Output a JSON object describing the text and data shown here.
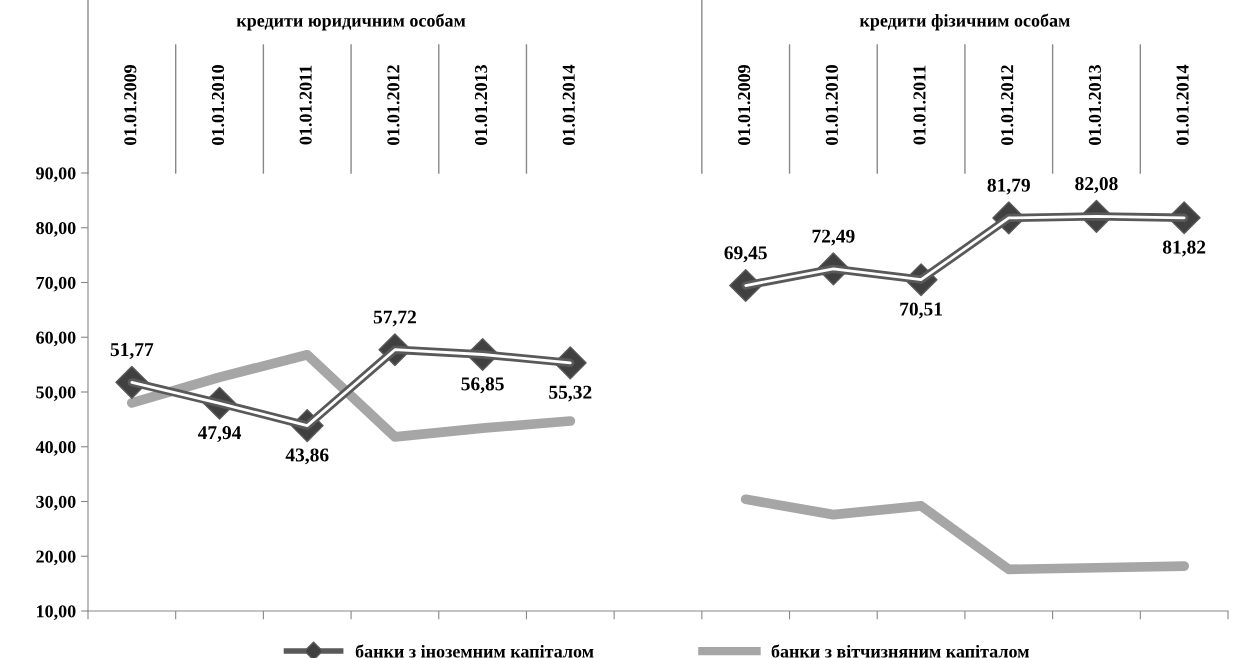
{
  "chart_data": {
    "type": "line",
    "categories": [
      "01.01.2009",
      "01.01.2010",
      "01.01.2011",
      "01.01.2012",
      "01.01.2013",
      "01.01.2014",
      null,
      "01.01.2009",
      "01.01.2010",
      "01.01.2011",
      "01.01.2012",
      "01.01.2013",
      "01.01.2014"
    ],
    "annotations": [
      "кредити юридичним особам",
      "кредити фізичним особам"
    ],
    "series": [
      {
        "name": "банки з іноземним капіталом",
        "color": "#595959",
        "marker": "diamond",
        "values": [
          51.77,
          47.94,
          43.86,
          57.72,
          56.85,
          55.32,
          null,
          69.45,
          72.49,
          70.51,
          81.79,
          82.08,
          81.82
        ],
        "value_labels": [
          "51,77",
          "47,94",
          "43,86",
          "57,72",
          "56,85",
          "55,32",
          null,
          "69,45",
          "72,49",
          "70,51",
          "81,79",
          "82,08",
          "81,82"
        ]
      },
      {
        "name": "банки з вітчизняним капіталом",
        "color": "#a6a6a6",
        "marker": "none",
        "values": [
          48.0,
          52.7,
          56.8,
          41.8,
          43.4,
          44.7,
          null,
          30.4,
          27.6,
          29.2,
          17.6,
          17.9,
          18.2
        ]
      }
    ],
    "ylim": [
      10,
      90
    ],
    "yticks": [
      {
        "value": 10,
        "label": "10,00"
      },
      {
        "value": 20,
        "label": "20,00"
      },
      {
        "value": 30,
        "label": "30,00"
      },
      {
        "value": 40,
        "label": "40,00"
      },
      {
        "value": 50,
        "label": "50,00"
      },
      {
        "value": 60,
        "label": "60,00"
      },
      {
        "value": 70,
        "label": "70,00"
      },
      {
        "value": 80,
        "label": "80,00"
      },
      {
        "value": 90,
        "label": "90,00"
      }
    ],
    "grid": false,
    "legend": "bottom",
    "line_style": "solid"
  }
}
